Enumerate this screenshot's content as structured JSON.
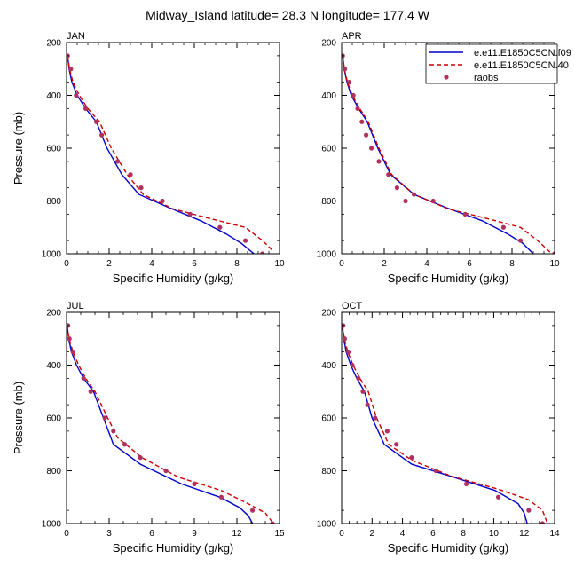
{
  "figure": {
    "title": "Midway_Island  latitude= 28.3 N longitude= 177.4 W"
  },
  "colors": {
    "model_1": "#0000cc",
    "model_2": "#cc0000",
    "raobs": "#b03060",
    "axes": "#000000",
    "background": "#ffffff"
  },
  "legend": {
    "placement": "top-right of APR panel",
    "entries": [
      {
        "label": "e.e11.E1850C5CN.f09",
        "style": "solid-line",
        "color_key": "model_1"
      },
      {
        "label": "e.e11.E1850C5CN.40",
        "style": "dashed-line",
        "color_key": "model_2"
      },
      {
        "label": "raobs",
        "style": "marker",
        "color_key": "raobs"
      }
    ]
  },
  "chart_data": [
    {
      "type": "line",
      "title": "JAN",
      "xlabel": "Specific Humidity (g/kg)",
      "ylabel": "Pressure (mb)",
      "xlim": [
        0,
        10
      ],
      "ylim": [
        1000,
        200
      ],
      "y_inverted": true,
      "xticks": [
        0,
        2,
        4,
        6,
        8,
        10
      ],
      "yticks": [
        200,
        400,
        600,
        800,
        1000
      ],
      "series": [
        {
          "name": "e.e11.E1850C5CN.f09",
          "style": "solid",
          "color_key": "model_1",
          "x": [
            0.05,
            0.12,
            0.25,
            0.5,
            0.9,
            1.4,
            1.9,
            2.6,
            3.4,
            4.8,
            6.3,
            7.5,
            8.2,
            8.8
          ],
          "y": [
            250,
            300,
            350,
            400,
            450,
            500,
            600,
            700,
            775,
            825,
            875,
            925,
            960,
            1000
          ]
        },
        {
          "name": "e.e11.E1850C5CN.40",
          "style": "dashed",
          "color_key": "model_2",
          "x": [
            0.05,
            0.14,
            0.3,
            0.6,
            1.0,
            1.55,
            2.1,
            2.85,
            3.6,
            5.0,
            6.9,
            8.4,
            9.2,
            9.7
          ],
          "y": [
            250,
            300,
            350,
            400,
            450,
            500,
            600,
            700,
            775,
            830,
            870,
            900,
            950,
            990
          ]
        },
        {
          "name": "raobs",
          "style": "markers",
          "color_key": "raobs",
          "x": [
            0.05,
            0.2,
            0.45,
            0.9,
            1.4,
            1.65,
            2.4,
            3.0,
            3.5,
            4.5,
            5.8,
            7.2,
            8.4,
            9.2
          ],
          "y": [
            250,
            300,
            400,
            450,
            500,
            550,
            650,
            700,
            750,
            800,
            850,
            900,
            950,
            1000
          ]
        }
      ]
    },
    {
      "type": "line",
      "title": "APR",
      "xlabel": "Specific Humidity (g/kg)",
      "ylabel": "",
      "xlim": [
        0,
        10
      ],
      "ylim": [
        1000,
        200
      ],
      "y_inverted": true,
      "xticks": [
        0,
        2,
        4,
        6,
        8,
        10
      ],
      "yticks": [
        200,
        400,
        600,
        800,
        1000
      ],
      "series": [
        {
          "name": "e.e11.E1850C5CN.f09",
          "style": "solid",
          "color_key": "model_1",
          "x": [
            0.05,
            0.12,
            0.25,
            0.45,
            0.8,
            1.2,
            1.7,
            2.3,
            3.4,
            4.9,
            6.6,
            7.8,
            8.5,
            9.0
          ],
          "y": [
            250,
            300,
            350,
            400,
            450,
            500,
            600,
            700,
            775,
            825,
            875,
            925,
            960,
            1000
          ]
        },
        {
          "name": "e.e11.E1850C5CN.40",
          "style": "dashed",
          "color_key": "model_2",
          "x": [
            0.05,
            0.13,
            0.27,
            0.5,
            0.85,
            1.25,
            1.75,
            2.35,
            3.4,
            5.0,
            7.0,
            8.4,
            9.2,
            9.8
          ],
          "y": [
            250,
            300,
            350,
            400,
            450,
            500,
            600,
            700,
            775,
            830,
            870,
            900,
            950,
            995
          ]
        },
        {
          "name": "raobs",
          "style": "markers",
          "color_key": "raobs",
          "x": [
            0.05,
            0.15,
            0.35,
            0.55,
            0.75,
            0.95,
            1.15,
            1.4,
            1.75,
            2.2,
            2.6,
            3.0,
            3.4,
            4.3,
            5.8,
            7.6,
            8.4,
            10.0
          ],
          "y": [
            250,
            300,
            350,
            400,
            450,
            500,
            550,
            600,
            650,
            700,
            750,
            800,
            775,
            800,
            850,
            900,
            950,
            1000
          ]
        }
      ]
    },
    {
      "type": "line",
      "title": "JUL",
      "xlabel": "Specific Humidity (g/kg)",
      "ylabel": "Pressure (mb)",
      "xlim": [
        0,
        15
      ],
      "ylim": [
        1000,
        200
      ],
      "y_inverted": true,
      "xticks": [
        0,
        3,
        6,
        9,
        12,
        15
      ],
      "yticks": [
        200,
        400,
        600,
        800,
        1000
      ],
      "series": [
        {
          "name": "e.e11.E1850C5CN.f09",
          "style": "solid",
          "color_key": "model_1",
          "x": [
            0.05,
            0.15,
            0.35,
            0.7,
            1.2,
            1.9,
            2.6,
            3.3,
            5.2,
            8.1,
            10.8,
            12.2,
            12.8,
            13.1
          ],
          "y": [
            250,
            300,
            350,
            400,
            450,
            500,
            600,
            700,
            775,
            850,
            900,
            940,
            970,
            1000
          ]
        },
        {
          "name": "e.e11.E1850C5CN.40",
          "style": "dashed",
          "color_key": "model_2",
          "x": [
            0.05,
            0.18,
            0.45,
            0.85,
            1.35,
            2.0,
            2.9,
            3.6,
            5.3,
            7.9,
            10.9,
            12.8,
            14.0,
            14.5
          ],
          "y": [
            250,
            300,
            350,
            400,
            450,
            500,
            600,
            675,
            750,
            825,
            875,
            925,
            960,
            995
          ]
        },
        {
          "name": "raobs",
          "style": "markers",
          "color_key": "raobs",
          "x": [
            0.1,
            0.2,
            0.45,
            1.2,
            1.7,
            2.7,
            3.3,
            4.1,
            5.2,
            7.0,
            9.0,
            10.9,
            13.1,
            14.5
          ],
          "y": [
            250,
            300,
            350,
            450,
            500,
            600,
            650,
            700,
            750,
            800,
            850,
            900,
            950,
            1000
          ]
        }
      ]
    },
    {
      "type": "line",
      "title": "OCT",
      "xlabel": "Specific Humidity (g/kg)",
      "ylabel": "",
      "xlim": [
        0,
        14
      ],
      "ylim": [
        1000,
        200
      ],
      "y_inverted": true,
      "xticks": [
        0,
        2,
        4,
        6,
        8,
        10,
        12,
        14
      ],
      "yticks": [
        200,
        400,
        600,
        800,
        1000
      ],
      "series": [
        {
          "name": "e.e11.E1850C5CN.f09",
          "style": "solid",
          "color_key": "model_1",
          "x": [
            0.05,
            0.14,
            0.3,
            0.6,
            1.0,
            1.5,
            2.0,
            2.8,
            4.6,
            7.4,
            10.1,
            11.6,
            12.0,
            12.2
          ],
          "y": [
            250,
            300,
            350,
            400,
            450,
            500,
            600,
            700,
            775,
            825,
            875,
            925,
            960,
            1000
          ]
        },
        {
          "name": "e.e11.E1850C5CN.40",
          "style": "dashed",
          "color_key": "model_2",
          "x": [
            0.05,
            0.18,
            0.4,
            0.75,
            1.2,
            1.75,
            2.3,
            3.1,
            4.6,
            7.2,
            10.3,
            12.3,
            13.2,
            13.5
          ],
          "y": [
            250,
            300,
            350,
            400,
            450,
            500,
            600,
            700,
            760,
            820,
            870,
            910,
            950,
            995
          ]
        },
        {
          "name": "raobs",
          "style": "markers",
          "color_key": "raobs",
          "x": [
            0.1,
            0.2,
            0.45,
            0.7,
            1.1,
            1.4,
            1.7,
            2.2,
            3.0,
            3.6,
            4.6,
            6.2,
            8.2,
            10.3,
            12.3,
            13.2
          ],
          "y": [
            250,
            300,
            350,
            400,
            450,
            500,
            550,
            600,
            650,
            700,
            750,
            800,
            850,
            900,
            950,
            1000
          ]
        }
      ]
    }
  ]
}
